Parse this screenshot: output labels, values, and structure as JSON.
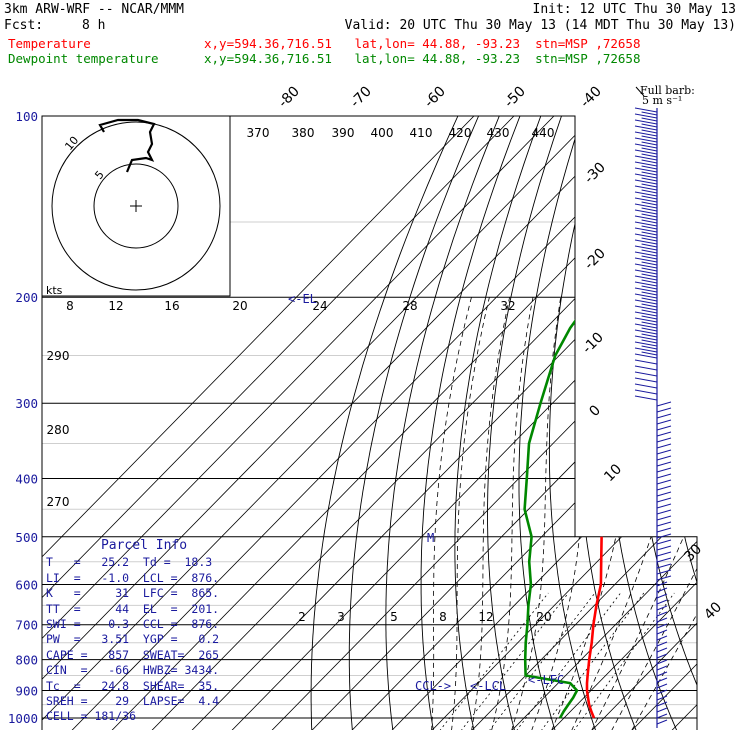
{
  "header": {
    "model": "3km ARW-WRF -- NCAR/MMM",
    "init": "Init: 12 UTC Thu 30 May 13",
    "fcst_label": "Fcst:",
    "fcst_value": "8 h",
    "valid": "Valid: 20 UTC Thu 30 May 13 (14 MDT Thu 30 May 13)",
    "temp_label": "Temperature",
    "temp_info": "x,y=594.36,716.51   lat,lon= 44.88, -93.23  stn=MSP ,72658",
    "dew_label": "Dewpoint temperature",
    "dew_info": "x,y=594.36,716.51   lat,lon= 44.88, -93.23  stn=MSP ,72658",
    "barb_legend": "Full barb:",
    "barb_units": "5 m s⁻¹"
  },
  "colors": {
    "temperature": "#ff0000",
    "dewpoint": "#008800",
    "text": "#1a1a9e",
    "grid": "#000000"
  },
  "chart_data": {
    "type": "line",
    "title": "Skew-T log-P sounding, MSP 72658",
    "ylabel": "Pressure (hPa)",
    "pressure_ticks": [
      100,
      200,
      300,
      400,
      500,
      600,
      700,
      800,
      900,
      1000
    ],
    "ylim": [
      100,
      1000
    ],
    "isotherm_labels": [
      "-80",
      "-70",
      "-60",
      "-50",
      "-40",
      "-30",
      "-20",
      "-10",
      "0",
      "10",
      "30",
      "40"
    ],
    "theta_labels": [
      "370",
      "380",
      "390",
      "400",
      "410",
      "420",
      "430",
      "440"
    ],
    "theta_lower_labels": [
      "290",
      "280",
      "270"
    ],
    "mixing_ratio_labels": [
      "2",
      "3",
      "5",
      "8",
      "12",
      "20"
    ],
    "el_label": "<-EL",
    "m_label": "M",
    "ccl_label": "CCL->",
    "lcl_label": "<-LCL",
    "lfc_label": "<-LFC",
    "series": [
      {
        "name": "Temperature",
        "pressure": [
          1000,
          975,
          950,
          925,
          900,
          875,
          850,
          800,
          750,
          700,
          650,
          600,
          550,
          500,
          450,
          400,
          350,
          300,
          250,
          225,
          200,
          175,
          150,
          135,
          125,
          115,
          100
        ],
        "temperature": [
          27.5,
          25.2,
          23.0,
          21.0,
          19.0,
          17.2,
          15.5,
          12.0,
          8.5,
          4.5,
          0.5,
          -3.5,
          -9.0,
          -15.0,
          -22.5,
          -30.5,
          -40.0,
          -49.5,
          -56.5,
          -58.0,
          -58.0,
          -55.5,
          -51.0,
          -46.0,
          -47.0,
          -50.0,
          -53.0
        ]
      },
      {
        "name": "Dewpoint temperature",
        "pressure": [
          1000,
          975,
          950,
          925,
          900,
          875,
          850,
          800,
          750,
          700,
          650,
          600,
          550,
          500,
          450,
          400,
          350,
          300,
          250,
          225,
          200,
          175,
          150,
          135,
          125,
          115,
          100
        ],
        "temperature": [
          19.0,
          18.3,
          17.8,
          17.3,
          16.5,
          13.0,
          0.0,
          -4.0,
          -8.0,
          -12.0,
          -16.5,
          -21.0,
          -27.0,
          -32.5,
          -41.0,
          -48.0,
          -56.0,
          -63.0,
          -71.0,
          -74.0,
          -76.0,
          -76.0,
          -76.5,
          -75.0,
          -72.0,
          -69.0,
          -66.0
        ]
      }
    ],
    "hodograph": {
      "ring_labels": [
        "5",
        "10"
      ],
      "units": "kts"
    },
    "hodograph_ticks": [
      "8",
      "12",
      "16",
      "20",
      "24",
      "28",
      "32"
    ]
  },
  "parcel": {
    "title": "Parcel  Info",
    "rows": [
      "T   =   25.2  Td =  18.3",
      "LI  =   -1.0  LCL =  876.",
      "K   =     31  LFC =  865.",
      "TT  =     44  EL  =  201.",
      "SWI =    0.3  CCL =  876.",
      "PW  =   3.51  YGP =   0.2",
      "CAPE =   857  SWEAT=  265",
      "CIN  =   -66  HWBZ= 3434.",
      "Tc  =   24.8  SHEAR=  35.",
      "SREH =    29  LAPSE=  4.4",
      "CELL = 181/36"
    ]
  }
}
